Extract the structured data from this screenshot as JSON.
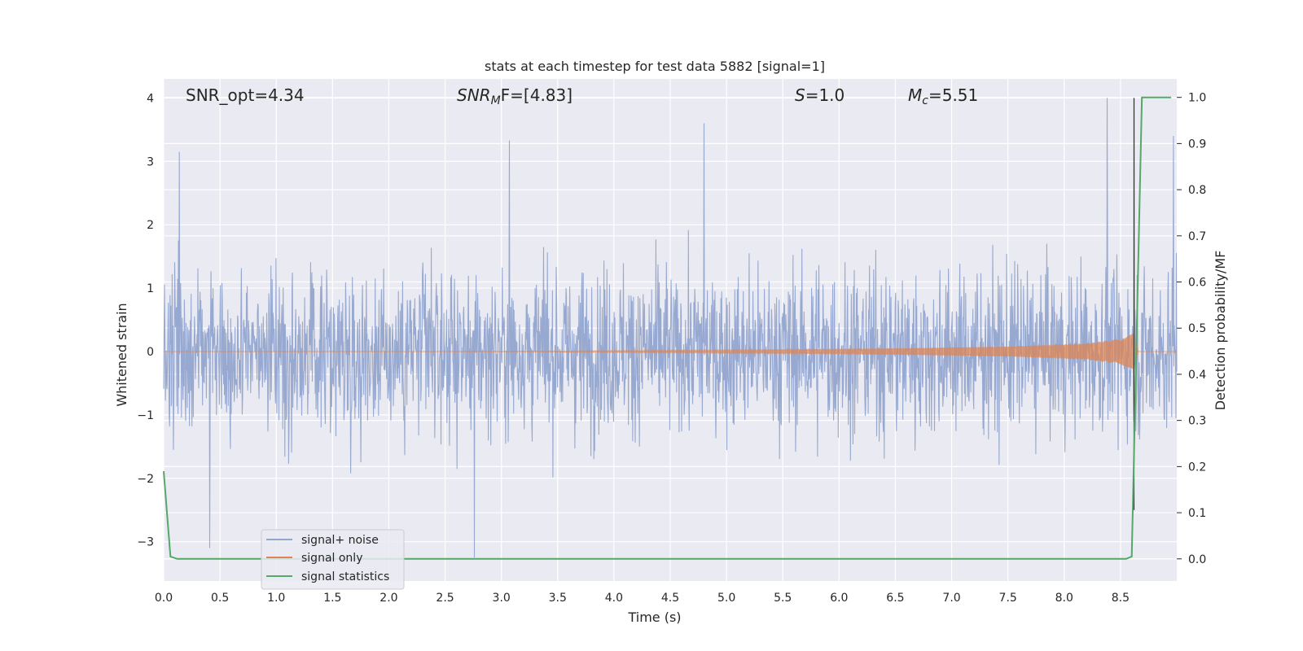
{
  "chart_data": {
    "type": "line",
    "title": "stats at each timestep for test data 5882 [signal=1]",
    "xlabel": "Time (s)",
    "ylabel": "Whitened strain",
    "y2label": "Detection probability/MF",
    "xlim": [
      0.0,
      9.0
    ],
    "ylim": [
      -3.62,
      4.3
    ],
    "y2lim": [
      -0.048,
      1.04
    ],
    "x_ticks": [
      "0.0",
      "0.5",
      "1.0",
      "1.5",
      "2.0",
      "2.5",
      "3.0",
      "3.5",
      "4.0",
      "4.5",
      "5.0",
      "5.5",
      "6.0",
      "6.5",
      "7.0",
      "7.5",
      "8.0",
      "8.5"
    ],
    "y_ticks": [
      "4",
      "3",
      "2",
      "1",
      "0",
      "−1",
      "−2",
      "−3"
    ],
    "y2_ticks": [
      "1.0",
      "0.9",
      "0.8",
      "0.7",
      "0.6",
      "0.5",
      "0.4",
      "0.3",
      "0.2",
      "0.1",
      "0.0"
    ],
    "grid": true,
    "legend_position": "lower-left",
    "annotations": {
      "snr_opt": "SNR_opt=4.34",
      "snr_mf_main": "SNR",
      "snr_mf_sub": "M",
      "snr_mf_rest": "F=[4.83]",
      "s_italic": "S",
      "s_rest": "=1.0",
      "mc_italic": "M",
      "mc_sub": "c",
      "mc_rest": "=5.51"
    },
    "series": [
      {
        "name": "signal+ noise",
        "color": "#92a5cf",
        "description_values": {
          "noise_spread_approx": [
            -3.3,
            4.0
          ],
          "peak_values": [
            {
              "x": 0.14,
              "y": 3.15
            },
            {
              "x": 0.41,
              "y": -3.1
            },
            {
              "x": 2.76,
              "y": -3.25
            },
            {
              "x": 3.07,
              "y": 3.33
            },
            {
              "x": 4.8,
              "y": 3.6
            },
            {
              "x": 8.38,
              "y": 4.0
            },
            {
              "x": 8.62,
              "y": 4.0
            },
            {
              "x": 8.97,
              "y": 3.4
            }
          ]
        }
      },
      {
        "name": "signal only",
        "color": "#dd8452",
        "envelope": [
          {
            "x": 0.0,
            "y": 0.0
          },
          {
            "x": 3.0,
            "y": 0.005
          },
          {
            "x": 5.0,
            "y": 0.025
          },
          {
            "x": 6.5,
            "y": 0.05
          },
          {
            "x": 7.5,
            "y": 0.08
          },
          {
            "x": 8.2,
            "y": 0.13
          },
          {
            "x": 8.5,
            "y": 0.2
          },
          {
            "x": 8.62,
            "y": 0.3
          },
          {
            "x": 8.66,
            "y": 0.0
          },
          {
            "x": 9.0,
            "y": 0.0
          }
        ]
      },
      {
        "name": "signal statistics",
        "color": "#55a868",
        "axis": "right",
        "points": [
          {
            "x": 0.0,
            "y": 0.19
          },
          {
            "x": 0.06,
            "y": 0.005
          },
          {
            "x": 0.12,
            "y": 0.0
          },
          {
            "x": 8.55,
            "y": 0.0
          },
          {
            "x": 8.6,
            "y": 0.005
          },
          {
            "x": 8.69,
            "y": 1.0
          },
          {
            "x": 8.75,
            "y": 1.0
          },
          {
            "x": 8.95,
            "y": 1.0
          }
        ]
      }
    ]
  }
}
